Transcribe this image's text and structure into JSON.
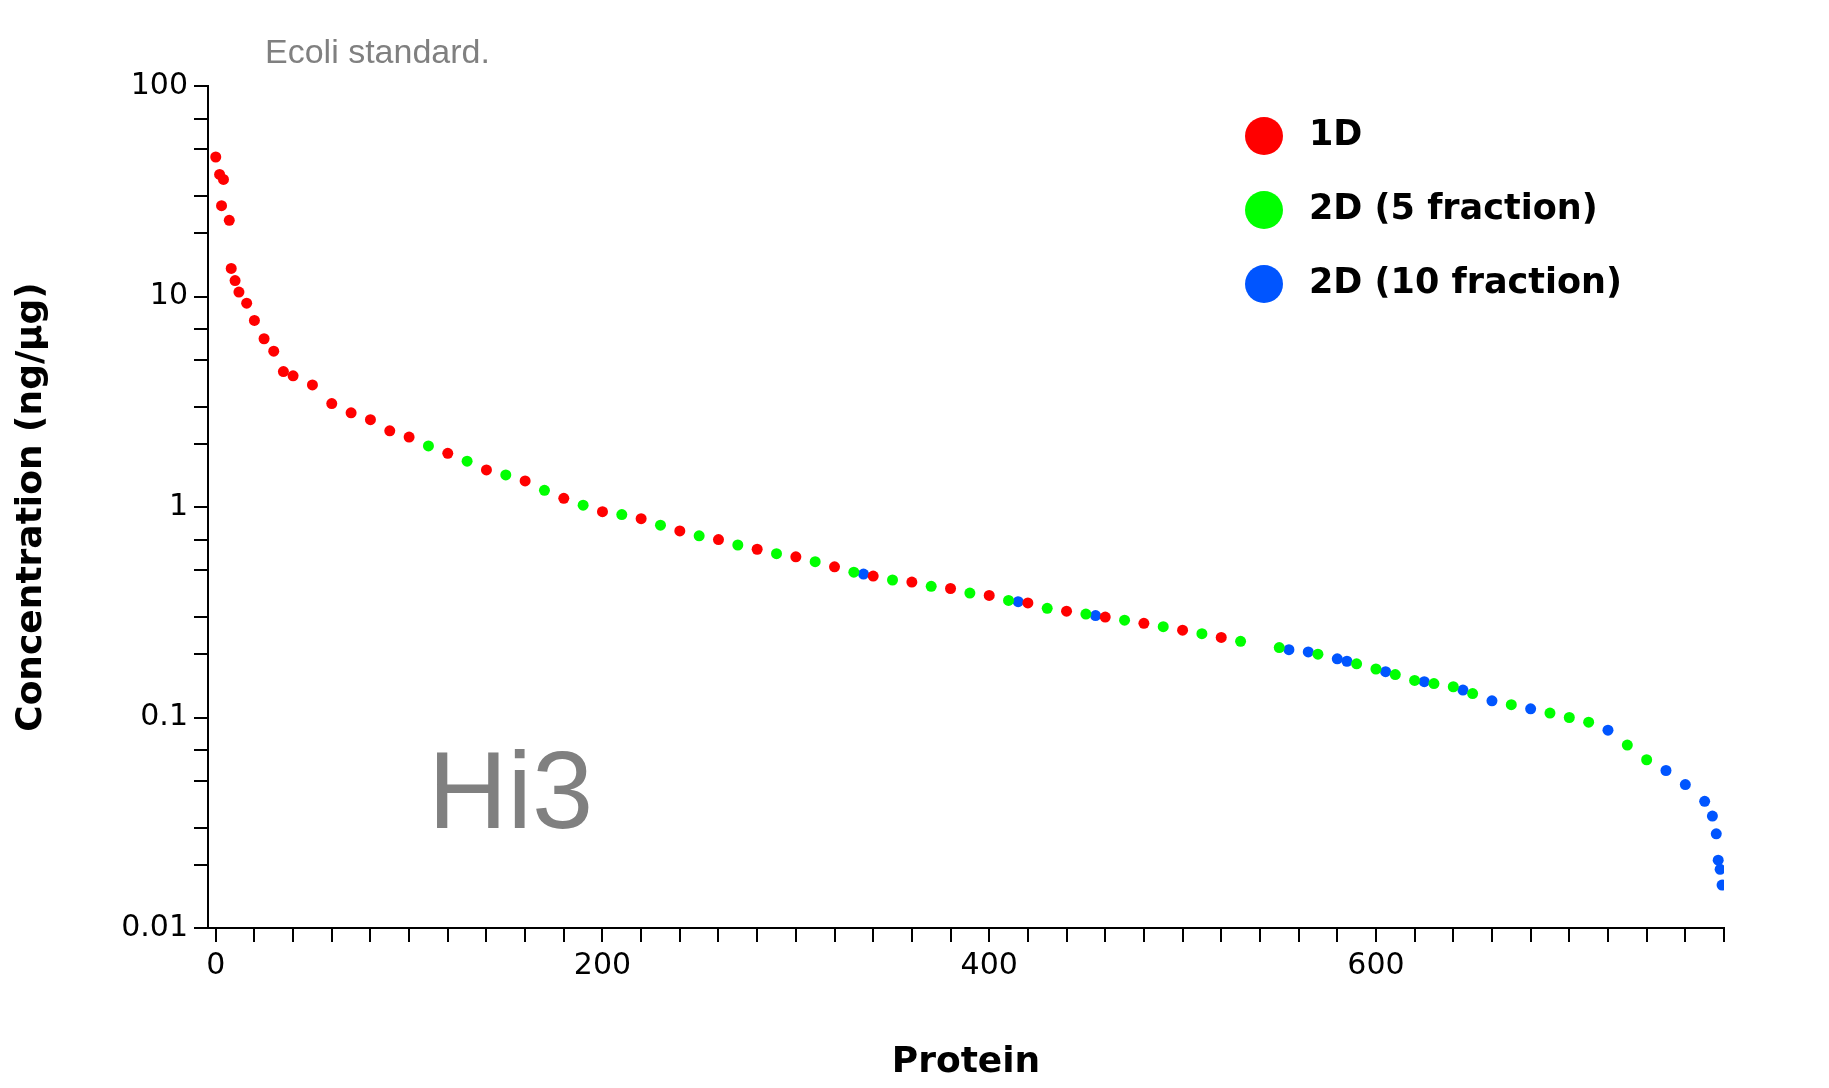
{
  "chart_data": {
    "type": "scatter",
    "title": "Ecoli standard.",
    "xlabel": "Protein",
    "ylabel": "Concentration (ng/µg)",
    "annotations": [
      "Hi3"
    ],
    "xlim": [
      -4,
      780
    ],
    "xticks": [
      0,
      {
        "value": 20,
        "label": null
      },
      {
        "value": 40,
        "label": null
      },
      {
        "value": 60,
        "label": null
      },
      {
        "value": 80,
        "label": null
      },
      {
        "value": 100,
        "label": null
      },
      {
        "value": 120,
        "label": null
      },
      {
        "value": 140,
        "label": null
      },
      {
        "value": 160,
        "label": null
      },
      {
        "value": 180,
        "label": null
      },
      200,
      {
        "value": 220,
        "label": null
      },
      {
        "value": 240,
        "label": null
      },
      {
        "value": 260,
        "label": null
      },
      {
        "value": 280,
        "label": null
      },
      {
        "value": 300,
        "label": null
      },
      {
        "value": 320,
        "label": null
      },
      {
        "value": 340,
        "label": null
      },
      {
        "value": 360,
        "label": null
      },
      {
        "value": 380,
        "label": null
      },
      400,
      {
        "value": 420,
        "label": null
      },
      {
        "value": 440,
        "label": null
      },
      {
        "value": 460,
        "label": null
      },
      {
        "value": 480,
        "label": null
      },
      {
        "value": 500,
        "label": null
      },
      {
        "value": 520,
        "label": null
      },
      {
        "value": 540,
        "label": null
      },
      {
        "value": 560,
        "label": null
      },
      {
        "value": 580,
        "label": null
      },
      600,
      {
        "value": 620,
        "label": null
      },
      {
        "value": 640,
        "label": null
      },
      {
        "value": 660,
        "label": null
      },
      {
        "value": 680,
        "label": null
      },
      {
        "value": 700,
        "label": null
      },
      {
        "value": 720,
        "label": null
      },
      {
        "value": 740,
        "label": null
      },
      {
        "value": 760,
        "label": null
      },
      {
        "value": 780,
        "label": null
      }
    ],
    "ylim": [
      0.01,
      100
    ],
    "yticks": [
      0.01,
      {
        "value": 0.02,
        "label": null
      },
      {
        "value": 0.03,
        "label": null
      },
      {
        "value": 0.05,
        "label": null
      },
      {
        "value": 0.07,
        "label": null
      },
      0.1,
      {
        "value": 0.2,
        "label": null
      },
      {
        "value": 0.3,
        "label": null
      },
      {
        "value": 0.5,
        "label": null
      },
      {
        "value": 0.7,
        "label": null
      },
      1,
      {
        "value": 2,
        "label": null
      },
      {
        "value": 3,
        "label": null
      },
      {
        "value": 5,
        "label": null
      },
      {
        "value": 7,
        "label": null
      },
      10,
      {
        "value": 20,
        "label": null
      },
      {
        "value": 30,
        "label": null
      },
      {
        "value": 50,
        "label": null
      },
      {
        "value": 70,
        "label": null
      },
      100
    ],
    "log": "y",
    "grid": false,
    "legend": "top right",
    "marker": "circle",
    "series": [
      {
        "name": "1D",
        "color": "#ff0000",
        "x": [
          0,
          2,
          3,
          4,
          7,
          8,
          10,
          12,
          16,
          20,
          25,
          30,
          35,
          40,
          50,
          60,
          70,
          80,
          90,
          100,
          120,
          140,
          160,
          180,
          200,
          220,
          240,
          260,
          280,
          300,
          320,
          340,
          360,
          380,
          400,
          420,
          440,
          460,
          480,
          500,
          520
        ],
        "values": [
          46,
          38,
          27,
          36,
          23,
          13.6,
          11.9,
          10.5,
          9.3,
          7.7,
          6.3,
          5.5,
          4.4,
          4.2,
          3.8,
          3.1,
          2.8,
          2.6,
          2.3,
          2.15,
          1.8,
          1.5,
          1.33,
          1.1,
          0.95,
          0.88,
          0.77,
          0.7,
          0.63,
          0.58,
          0.52,
          0.47,
          0.44,
          0.41,
          0.38,
          0.35,
          0.32,
          0.3,
          0.28,
          0.26,
          0.24
        ]
      },
      {
        "name": "2D (5 fraction)",
        "color": "#00ff00",
        "x": [
          110,
          130,
          150,
          170,
          190,
          210,
          230,
          250,
          270,
          290,
          310,
          330,
          350,
          370,
          390,
          410,
          430,
          450,
          470,
          490,
          510,
          530,
          550,
          570,
          590,
          600,
          610,
          620,
          630,
          640,
          650,
          670,
          690,
          700,
          710,
          730,
          740
        ],
        "values": [
          1.95,
          1.65,
          1.42,
          1.2,
          1.02,
          0.92,
          0.82,
          0.73,
          0.66,
          0.6,
          0.55,
          0.49,
          0.45,
          0.42,
          0.39,
          0.36,
          0.33,
          0.31,
          0.29,
          0.27,
          0.25,
          0.23,
          0.215,
          0.2,
          0.18,
          0.17,
          0.16,
          0.15,
          0.145,
          0.14,
          0.13,
          0.115,
          0.105,
          0.1,
          0.095,
          0.074,
          0.063
        ]
      },
      {
        "name": "2D (10 fraction)",
        "color": "#0055ff",
        "x": [
          335,
          415,
          455,
          555,
          565,
          580,
          585,
          605,
          625,
          645,
          660,
          680,
          720,
          750,
          760,
          770,
          774,
          776,
          777,
          778,
          779
        ],
        "values": [
          0.48,
          0.355,
          0.305,
          0.21,
          0.205,
          0.19,
          0.185,
          0.165,
          0.148,
          0.135,
          0.12,
          0.11,
          0.087,
          0.056,
          0.048,
          0.04,
          0.034,
          0.028,
          0.021,
          0.019,
          0.016
        ]
      }
    ]
  }
}
